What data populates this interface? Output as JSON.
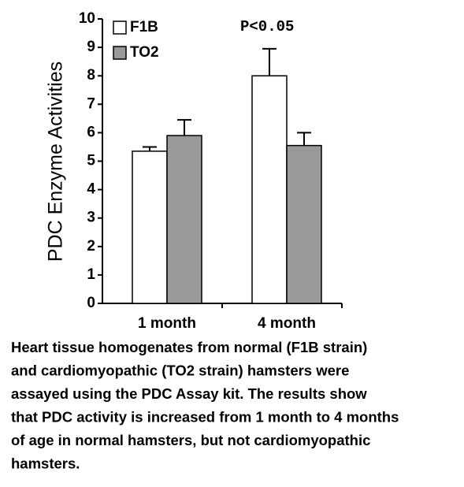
{
  "chart_data": {
    "type": "bar",
    "y_label": "PDC Enzyme Activities",
    "annotation": "P<0.05",
    "categories": [
      "1 month",
      "4 month"
    ],
    "series": [
      {
        "name": "F1B",
        "color": "#ffffff",
        "values": [
          5.35,
          8.0
        ],
        "errors": [
          0.15,
          0.95
        ]
      },
      {
        "name": "TO2",
        "color": "#999999",
        "values": [
          5.9,
          5.55
        ],
        "errors": [
          0.55,
          0.45
        ]
      }
    ],
    "ylim": [
      0,
      10
    ],
    "yticks": [
      0,
      1,
      2,
      3,
      4,
      5,
      6,
      7,
      8,
      9,
      10
    ]
  },
  "caption": {
    "lines": [
      "Heart tissue homogenates from normal (F1B strain)",
      "and cardiomyopathic (TO2 strain) hamsters were",
      "assayed using the PDC Assay kit. The results show",
      "that PDC activity is increased from 1 month to 4 months",
      "of age in normal hamsters, but not cardiomyopathic",
      "hamsters."
    ]
  }
}
